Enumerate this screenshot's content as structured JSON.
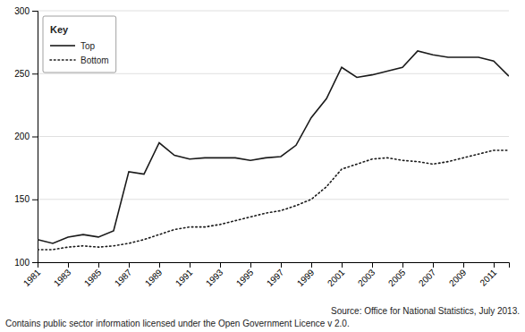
{
  "chart_data": {
    "type": "line",
    "x": [
      1981,
      1982,
      1983,
      1984,
      1985,
      1986,
      1987,
      1988,
      1989,
      1990,
      1991,
      1992,
      1993,
      1994,
      1995,
      1996,
      1997,
      1998,
      1999,
      2000,
      2001,
      2002,
      2003,
      2004,
      2005,
      2006,
      2007,
      2008,
      2009,
      2010,
      2011,
      2012
    ],
    "series": [
      {
        "name": "Top",
        "color": "#1a1a1a",
        "line_style": "solid",
        "values": [
          118,
          115,
          120,
          122,
          120,
          125,
          172,
          170,
          195,
          185,
          182,
          183,
          183,
          183,
          181,
          183,
          184,
          193,
          215,
          230,
          255,
          247,
          249,
          252,
          255,
          268,
          265,
          263,
          263,
          263,
          260,
          248
        ]
      },
      {
        "name": "Bottom",
        "color": "#1a1a1a",
        "line_style": "dotted",
        "values": [
          110,
          110,
          112,
          113,
          112,
          113,
          115,
          118,
          122,
          126,
          128,
          128,
          130,
          133,
          136,
          139,
          141,
          145,
          150,
          160,
          174,
          178,
          182,
          183,
          181,
          180,
          178,
          180,
          183,
          186,
          189,
          189
        ]
      }
    ],
    "xlim": [
      1981,
      2012
    ],
    "xticks": [
      1981,
      1983,
      1985,
      1987,
      1989,
      1991,
      1993,
      1995,
      1997,
      1999,
      2001,
      2003,
      2005,
      2007,
      2009,
      2011
    ],
    "ylim": [
      100,
      300
    ],
    "yticks": [
      100,
      150,
      200,
      250,
      300
    ],
    "grid": true,
    "legend": "top-left",
    "legend_title": "Key",
    "annotations": [
      "Source: Office for National Statistics, July 2013.",
      "Contains public sector information licensed under the Open Government Licence v 2.0."
    ]
  }
}
